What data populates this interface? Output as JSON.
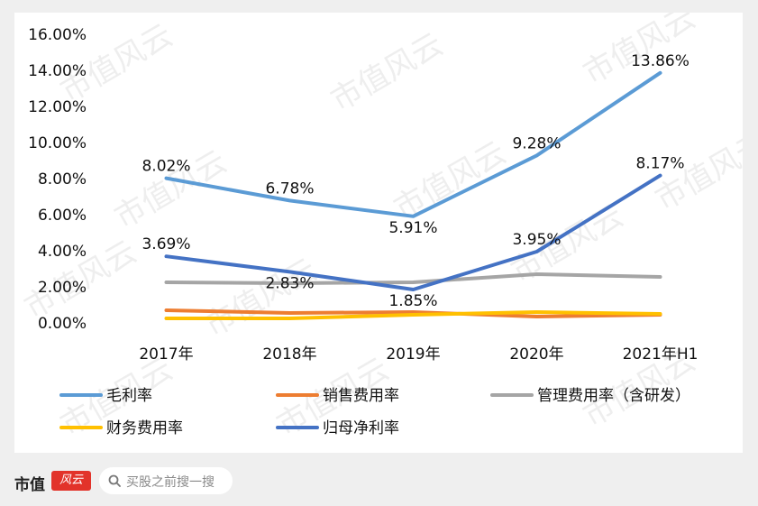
{
  "chart_data": {
    "type": "line",
    "categories": [
      "2017年",
      "2018年",
      "2019年",
      "2020年",
      "2021年H1"
    ],
    "ylim": [
      0,
      16
    ],
    "yticks": [
      "0.00%",
      "2.00%",
      "4.00%",
      "6.00%",
      "8.00%",
      "10.00%",
      "12.00%",
      "14.00%",
      "16.00%"
    ],
    "grid": false,
    "legend_position": "bottom",
    "series": [
      {
        "name": "毛利率",
        "color": "#5b9bd5",
        "values": [
          8.02,
          6.78,
          5.91,
          9.28,
          13.86
        ],
        "labels": [
          "8.02%",
          "6.78%",
          "5.91%",
          "9.28%",
          "13.86%"
        ]
      },
      {
        "name": "销售费用率",
        "color": "#ed7d31",
        "values": [
          0.7,
          0.55,
          0.6,
          0.35,
          0.45
        ],
        "labels": []
      },
      {
        "name": "管理费用率（含研发）",
        "color": "#a5a5a5",
        "values": [
          2.25,
          2.2,
          2.25,
          2.7,
          2.55
        ],
        "labels": []
      },
      {
        "name": "财务费用率",
        "color": "#ffc000",
        "values": [
          0.25,
          0.25,
          0.45,
          0.6,
          0.5
        ],
        "labels": []
      },
      {
        "name": "归母净利率",
        "color": "#4472c4",
        "values": [
          3.69,
          2.83,
          1.85,
          3.95,
          8.17
        ],
        "labels": [
          "3.69%",
          "2.83%",
          "1.85%",
          "3.95%",
          "8.17%"
        ]
      }
    ]
  },
  "watermark": "市值风云",
  "footer": {
    "brand": "市值",
    "brand_badge": "风云",
    "search_icon": "search-icon",
    "search_text": "买股之前搜一搜"
  }
}
